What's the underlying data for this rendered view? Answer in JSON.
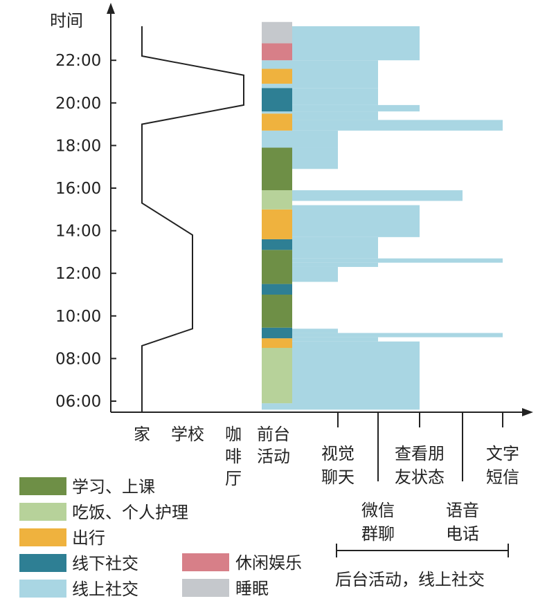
{
  "chart_data": {
    "type": "timeline",
    "y_axis_label": "时间",
    "y_ticks": [
      "06:00",
      "08:00",
      "10:00",
      "12:00",
      "14:00",
      "16:00",
      "18:00",
      "20:00",
      "22:00"
    ],
    "y_tick_hours": [
      6,
      8,
      10,
      12,
      14,
      16,
      18,
      20,
      22
    ],
    "ylim_hours": [
      5.5,
      23.75
    ],
    "location_labels": [
      "家",
      "学校",
      "咖啡厅"
    ],
    "location_path": [
      {
        "h": 23.6,
        "loc": 0
      },
      {
        "h": 22.2,
        "loc": 0
      },
      {
        "h": 21.3,
        "loc": 2
      },
      {
        "h": 19.9,
        "loc": 2
      },
      {
        "h": 19.0,
        "loc": 0
      },
      {
        "h": 15.3,
        "loc": 0
      },
      {
        "h": 13.8,
        "loc": 1
      },
      {
        "h": 9.4,
        "loc": 1
      },
      {
        "h": 8.6,
        "loc": 0
      },
      {
        "h": 5.5,
        "loc": 0
      }
    ],
    "foreground_label": "前台活动",
    "foreground": [
      {
        "start": 5.6,
        "end": 5.9,
        "activity": "online"
      },
      {
        "start": 5.9,
        "end": 8.5,
        "activity": "meal"
      },
      {
        "start": 8.5,
        "end": 8.95,
        "activity": "travel"
      },
      {
        "start": 8.95,
        "end": 9.45,
        "activity": "offline"
      },
      {
        "start": 9.45,
        "end": 11.0,
        "activity": "study"
      },
      {
        "start": 11.0,
        "end": 11.5,
        "activity": "offline"
      },
      {
        "start": 11.5,
        "end": 13.1,
        "activity": "study"
      },
      {
        "start": 13.1,
        "end": 13.6,
        "activity": "offline"
      },
      {
        "start": 13.6,
        "end": 15.0,
        "activity": "travel"
      },
      {
        "start": 15.0,
        "end": 15.9,
        "activity": "meal"
      },
      {
        "start": 15.9,
        "end": 17.9,
        "activity": "study"
      },
      {
        "start": 17.9,
        "end": 18.7,
        "activity": "online"
      },
      {
        "start": 18.7,
        "end": 19.5,
        "activity": "travel"
      },
      {
        "start": 19.5,
        "end": 19.6,
        "activity": "online"
      },
      {
        "start": 19.6,
        "end": 20.7,
        "activity": "offline"
      },
      {
        "start": 20.7,
        "end": 20.9,
        "activity": "online"
      },
      {
        "start": 20.9,
        "end": 21.6,
        "activity": "travel"
      },
      {
        "start": 21.6,
        "end": 22.0,
        "activity": "online"
      },
      {
        "start": 22.0,
        "end": 22.8,
        "activity": "leisure"
      },
      {
        "start": 22.8,
        "end": 23.8,
        "activity": "sleep"
      }
    ],
    "background_levels": [
      "视觉聊天",
      "微信群聊",
      "查看朋友状态",
      "语音电话",
      "文字短信"
    ],
    "background_label_rows": {
      "top": [
        "视觉聊天",
        "查看朋友状态",
        "文字短信"
      ],
      "bottom": [
        "微信群聊",
        "语音电话"
      ]
    },
    "background_online": [
      {
        "start": 5.6,
        "end": 8.8,
        "level": 3
      },
      {
        "start": 8.8,
        "end": 9.0,
        "level": 2
      },
      {
        "start": 9.0,
        "end": 9.2,
        "level": 5
      },
      {
        "start": 9.2,
        "end": 9.4,
        "level": 1
      },
      {
        "start": 11.6,
        "end": 12.3,
        "level": 1
      },
      {
        "start": 12.3,
        "end": 12.5,
        "level": 2
      },
      {
        "start": 12.5,
        "end": 12.7,
        "level": 5
      },
      {
        "start": 12.7,
        "end": 13.7,
        "level": 2
      },
      {
        "start": 13.7,
        "end": 15.2,
        "level": 3
      },
      {
        "start": 15.2,
        "end": 15.4,
        "level": 0
      },
      {
        "start": 15.4,
        "end": 15.9,
        "level": 4
      },
      {
        "start": 16.9,
        "end": 17.9,
        "level": 1
      },
      {
        "start": 17.9,
        "end": 18.7,
        "level": 1
      },
      {
        "start": 18.7,
        "end": 19.2,
        "level": 5
      },
      {
        "start": 19.2,
        "end": 19.6,
        "level": 2
      },
      {
        "start": 19.6,
        "end": 19.9,
        "level": 3
      },
      {
        "start": 19.9,
        "end": 20.7,
        "level": 2
      },
      {
        "start": 20.7,
        "end": 22.0,
        "level": 2
      },
      {
        "start": 22.0,
        "end": 23.6,
        "level": 3
      }
    ],
    "background_caption": "后台活动，线上社交",
    "legend": [
      {
        "key": "study",
        "label": "学习、上课",
        "color": "#6e8f46"
      },
      {
        "key": "meal",
        "label": "吃饭、个人护理",
        "color": "#b7d29a"
      },
      {
        "key": "travel",
        "label": "出行",
        "color": "#efb23e"
      },
      {
        "key": "offline",
        "label": "线下社交",
        "color": "#2e7f94"
      },
      {
        "key": "online",
        "label": "线上社交",
        "color": "#a9d6e3"
      },
      {
        "key": "leisure",
        "label": "休闲娱乐",
        "color": "#d77f88"
      },
      {
        "key": "sleep",
        "label": "睡眠",
        "color": "#c5c8cc"
      }
    ]
  }
}
